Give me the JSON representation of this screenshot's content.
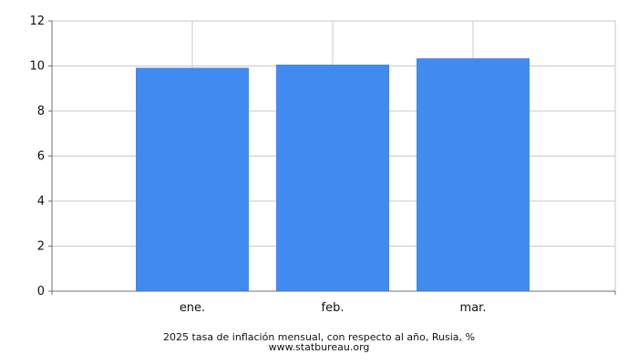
{
  "chart_data": {
    "type": "bar",
    "categories": [
      "ene.",
      "feb.",
      "mar."
    ],
    "values": [
      9.92,
      10.06,
      10.34
    ],
    "ylim": [
      0,
      12
    ],
    "yticks": [
      0,
      2,
      4,
      6,
      8,
      10,
      12
    ],
    "grid": true,
    "legend": "none",
    "title": "2025 tasa de inflación mensual, con respecto al año, Rusia, %",
    "source": "www.statbureau.org",
    "xlabel": "",
    "ylabel": "",
    "colors": {
      "bar": "#418aef",
      "grid": "#c8c8c8",
      "axis": "#6f6f6f"
    }
  }
}
